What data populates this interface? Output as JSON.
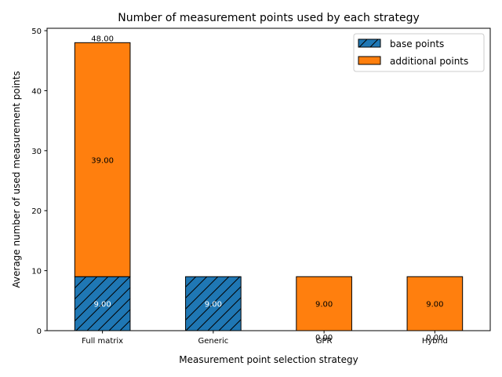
{
  "chart_data": {
    "type": "bar",
    "stacked": true,
    "title": "Number of measurement points used by each strategy",
    "xlabel": "Measurement point selection strategy",
    "ylabel": "Average number of used measurement points",
    "categories": [
      "Full matrix",
      "Generic",
      "GPR",
      "Hybrid"
    ],
    "ylim": [
      0,
      50.4
    ],
    "yticks": [
      0,
      10,
      20,
      30,
      40,
      50
    ],
    "grid": false,
    "legend_position": "top-right",
    "series": [
      {
        "name": "base points",
        "values": [
          9,
          9,
          0,
          0
        ],
        "color": "#1f77b4",
        "hatch": "diagonal",
        "label_color": "#ffffff",
        "labels": [
          "9.00",
          "9.00",
          "0.00",
          "0.00"
        ]
      },
      {
        "name": "additional points",
        "values": [
          39,
          0,
          9,
          9
        ],
        "color": "#ff7f0e",
        "hatch": "none",
        "label_color": "#000000",
        "labels": [
          "39.00",
          "",
          "9.00",
          "9.00"
        ]
      }
    ],
    "totals": [
      "48.00",
      "9.00",
      "9.00",
      "9.00"
    ]
  }
}
